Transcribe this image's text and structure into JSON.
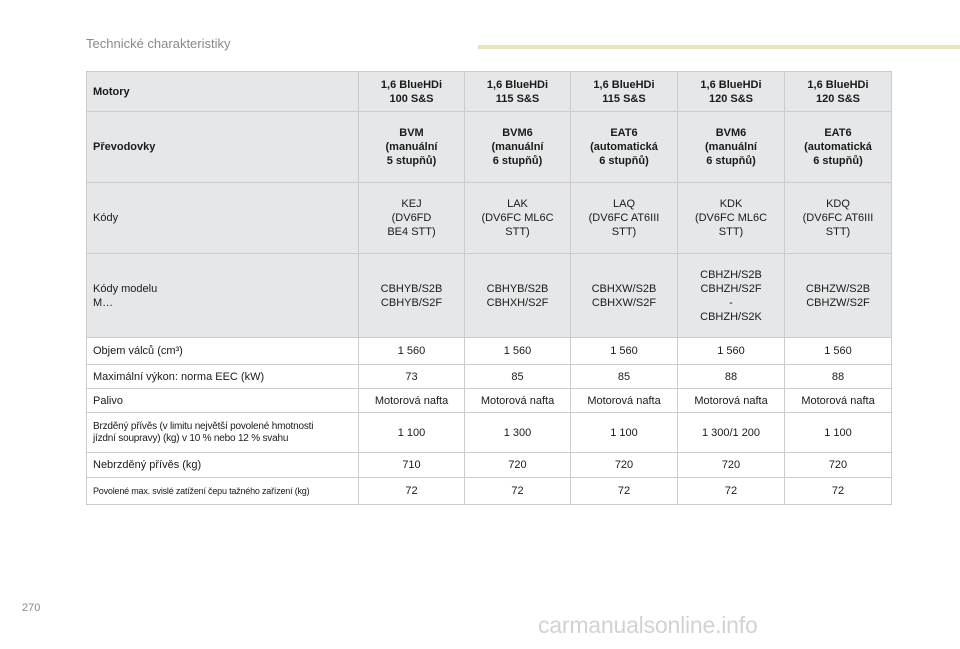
{
  "section_title": "Technické charakteristiky",
  "page_number": "270",
  "watermark": "carmanualsonline.info",
  "table": {
    "rows": [
      {
        "label": "Motory",
        "cells": [
          "1,6 BlueHDi\n100 S&S",
          "1,6 BlueHDi\n115 S&S",
          "1,6 BlueHDi\n115 S&S",
          "1,6 BlueHDi\n120 S&S",
          "1,6 BlueHDi\n120 S&S"
        ]
      },
      {
        "label": "Převodovky",
        "cells": [
          "BVM\n(manuální\n5 stupňů)",
          "BVM6\n(manuální\n6 stupňů)",
          "EAT6\n(automatická\n6 stupňů)",
          "BVM6\n(manuální\n6 stupňů)",
          "EAT6\n(automatická\n6 stupňů)"
        ]
      },
      {
        "label": "Kódy",
        "cells": [
          "KEJ\n(DV6FD\nBE4 STT)",
          "LAK\n(DV6FC ML6C\nSTT)",
          "LAQ\n(DV6FC AT6III\nSTT)",
          "KDK\n(DV6FC ML6C\nSTT)",
          "KDQ\n(DV6FC AT6III\nSTT)"
        ]
      },
      {
        "label": "Kódy modelu\nM…",
        "cells": [
          "CBHYB/S2B\nCBHYB/S2F",
          "CBHYB/S2B\nCBHXH/S2F",
          "CBHXW/S2B\nCBHXW/S2F",
          "CBHZH/S2B\nCBHZH/S2F\n-\nCBHZH/S2K",
          "CBHZW/S2B\nCBHZW/S2F"
        ]
      },
      {
        "label": "Objem válců (cm³)",
        "cells": [
          "1 560",
          "1 560",
          "1 560",
          "1 560",
          "1 560"
        ]
      },
      {
        "label": "Maximální výkon: norma EEC (kW)",
        "cells": [
          "73",
          "85",
          "85",
          "88",
          "88"
        ]
      },
      {
        "label": "Palivo",
        "cells": [
          "Motorová nafta",
          "Motorová nafta",
          "Motorová nafta",
          "Motorová nafta",
          "Motorová nafta"
        ]
      },
      {
        "label": "Brzděný přívěs (v limitu největší povolené hmotnosti\njízdní soupravy) (kg) v 10 % nebo 12 % svahu",
        "cells": [
          "1 100",
          "1 300",
          "1 100",
          "1 300/1 200",
          "1 100"
        ]
      },
      {
        "label": "Nebrzděný přívěs (kg)",
        "cells": [
          "710",
          "720",
          "720",
          "720",
          "720"
        ]
      },
      {
        "label": "Povolené max. svislé zatížení čepu tažného zařízení (kg)",
        "cells": [
          "72",
          "72",
          "72",
          "72",
          "72"
        ]
      }
    ]
  }
}
